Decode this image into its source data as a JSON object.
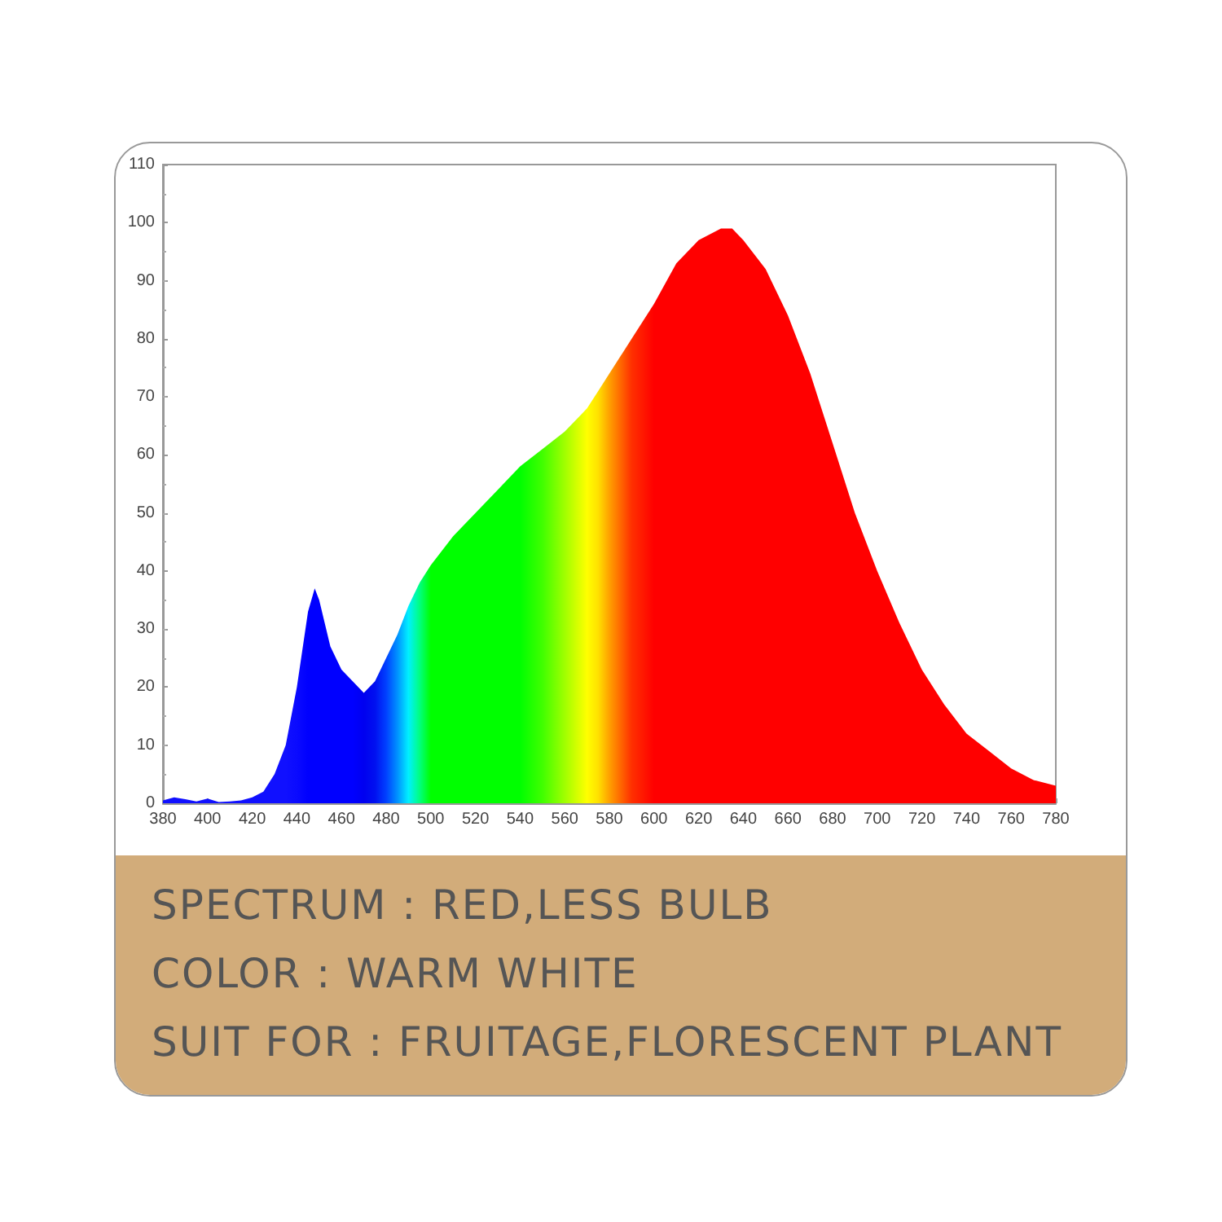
{
  "chart_data": {
    "type": "area",
    "x": [
      380,
      385,
      390,
      395,
      400,
      405,
      410,
      415,
      420,
      425,
      430,
      435,
      440,
      445,
      448,
      450,
      455,
      460,
      465,
      470,
      475,
      480,
      485,
      490,
      495,
      500,
      510,
      520,
      530,
      540,
      550,
      560,
      570,
      575,
      580,
      590,
      600,
      610,
      620,
      630,
      635,
      640,
      650,
      660,
      670,
      680,
      690,
      700,
      710,
      720,
      730,
      740,
      750,
      760,
      770,
      780
    ],
    "values": [
      0.5,
      1,
      0.7,
      0.3,
      0.8,
      0.2,
      0.3,
      0.5,
      1,
      2,
      5,
      10,
      20,
      33,
      37,
      35,
      27,
      23,
      21,
      19,
      21,
      25,
      29,
      34,
      38,
      41,
      46,
      50,
      54,
      58,
      61,
      64,
      68,
      71,
      74,
      80,
      86,
      93,
      97,
      99,
      99,
      97,
      92,
      84,
      74,
      62,
      50,
      40,
      31,
      23,
      17,
      12,
      9,
      6,
      4,
      3
    ],
    "colors": [
      "#1010ff",
      "#1010ff",
      "#1010ff",
      "#1010ff",
      "#1010ff",
      "#1010ff",
      "#1010ff",
      "#1010ff",
      "#1010ff",
      "#1010ff",
      "#1010ff",
      "#1010ff",
      "#0a0aff",
      "#0000ff",
      "#0000ff",
      "#0000ff",
      "#0000ff",
      "#0000ff",
      "#0000ff",
      "#0000f0",
      "#0010f0",
      "#0040ff",
      "#0090ff",
      "#00f0ff",
      "#00ff80",
      "#00ff00",
      "#00ff00",
      "#00ff00",
      "#00ff00",
      "#00ff00",
      "#40ff00",
      "#a0ff00",
      "#ffff00",
      "#ffe000",
      "#ffa000",
      "#ff3000",
      "#ff0000",
      "#ff0000",
      "#ff0000",
      "#ff0000",
      "#ff0000",
      "#ff0000",
      "#ff0000",
      "#ff0000",
      "#ff0000",
      "#ff0000",
      "#ff0000",
      "#ff0000",
      "#ff0000",
      "#ff0000",
      "#ff0000",
      "#ff0000",
      "#ff0000",
      "#ff0000",
      "#ff0000",
      "#ff0000"
    ],
    "xlim": [
      380,
      780
    ],
    "xticks": [
      380,
      400,
      420,
      440,
      460,
      480,
      500,
      520,
      540,
      560,
      580,
      600,
      620,
      640,
      660,
      680,
      700,
      720,
      740,
      760,
      780
    ],
    "ylim": [
      0,
      110
    ],
    "yticks": [
      0,
      10,
      20,
      30,
      40,
      50,
      60,
      70,
      80,
      90,
      100,
      110
    ],
    "grid": false,
    "marker": "none",
    "annotations": [
      "SPECTRUM : RED,LESS BULB",
      "COLOR : WARM WHITE",
      "SUIT FOR : FRUITAGE,FLORESCENT PLANT"
    ]
  }
}
